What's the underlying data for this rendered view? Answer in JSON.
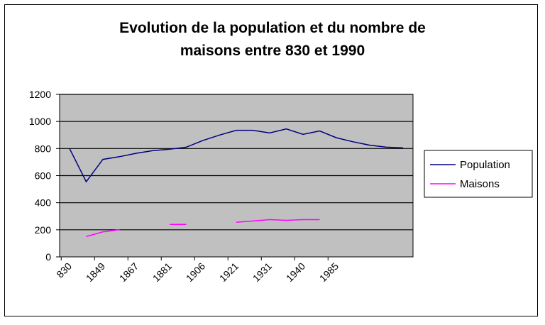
{
  "chart_data": {
    "type": "line",
    "title_line1": "Evolution de la population et du nombre de",
    "title_line2": "maisons entre 830 et 1990",
    "xlabel": "",
    "ylabel": "",
    "x_tick_labels": [
      "830",
      "1849",
      "1867",
      "1881",
      "1906",
      "1921",
      "1931",
      "1940",
      "1985"
    ],
    "ylim": [
      0,
      1200
    ],
    "yticks": [
      0,
      200,
      400,
      600,
      800,
      1000,
      1200
    ],
    "grid": true,
    "legend": "right",
    "background_color": "#c0c0c0",
    "series": [
      {
        "name": "Population",
        "color": "#000080",
        "values": [
          800,
          555,
          720,
          740,
          765,
          785,
          795,
          810,
          860,
          900,
          935,
          935,
          915,
          945,
          905,
          930,
          880,
          850,
          825,
          810,
          805
        ]
      },
      {
        "name": "Maisons",
        "color": "#ff00ff",
        "values": [
          null,
          150,
          185,
          200,
          null,
          null,
          240,
          240,
          null,
          null,
          255,
          265,
          275,
          270,
          275,
          275,
          null,
          null,
          null,
          null,
          null
        ]
      }
    ]
  }
}
